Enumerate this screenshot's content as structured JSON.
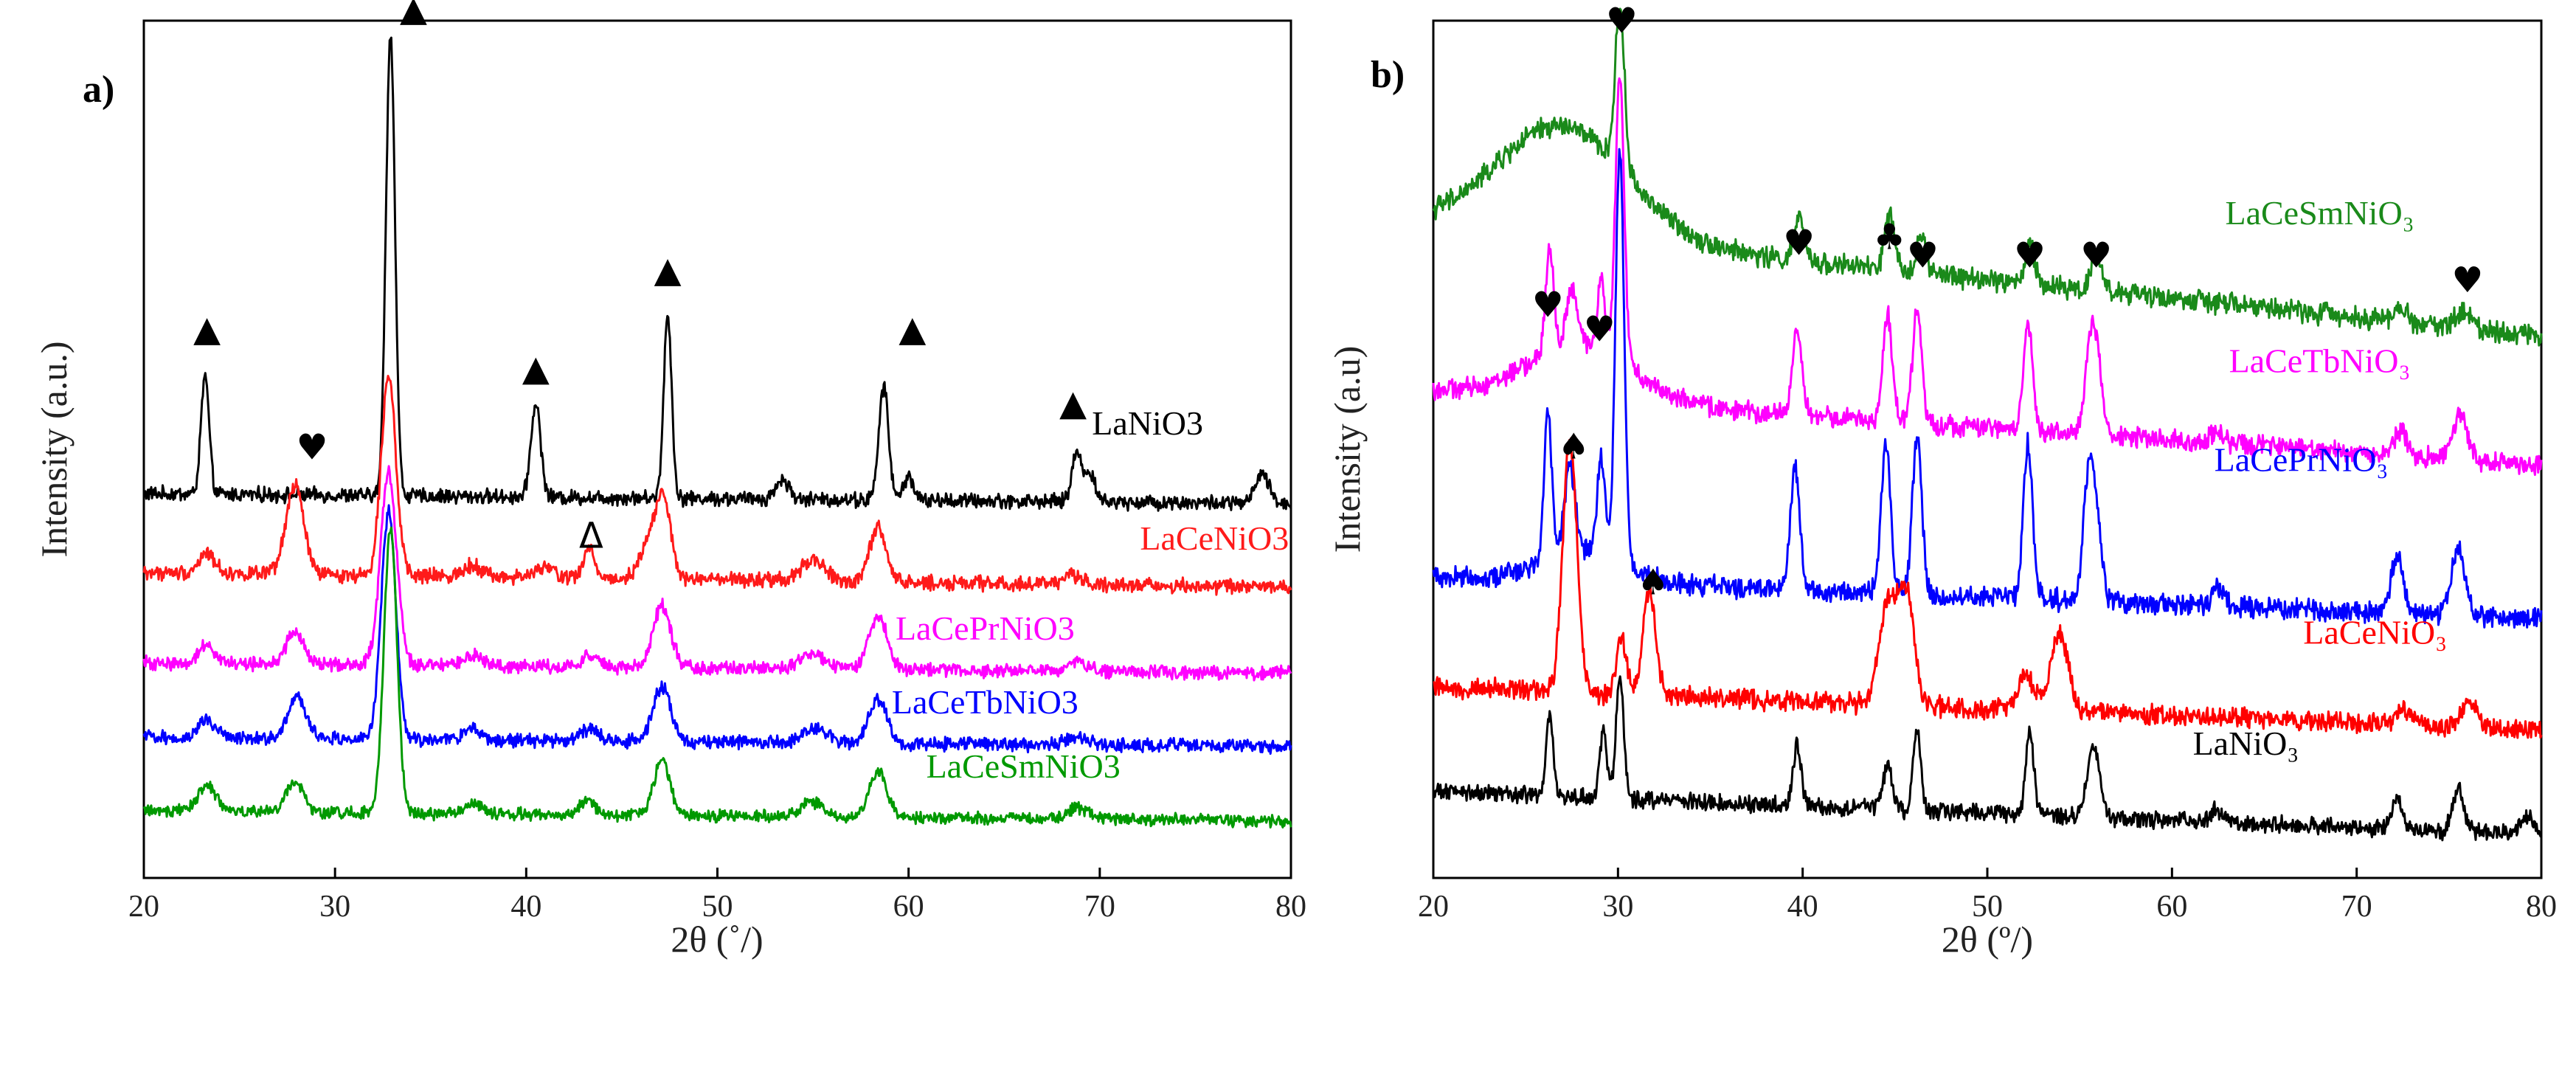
{
  "chart_data": [
    {
      "type": "line",
      "panel_label": "a)",
      "xlabel": "2θ (˚/)",
      "ylabel": "Intensity (a.u.)",
      "xlim": [
        20,
        80
      ],
      "xticks": [
        20,
        30,
        40,
        50,
        60,
        70,
        80
      ],
      "yticks": [],
      "series": [
        {
          "name": "LaNiO3",
          "color": "#000000",
          "offset": 3.3,
          "noise": 0.06,
          "background": [
            0.1,
            0.0
          ],
          "label_x": 72.5,
          "label_dy": 0.55,
          "peaks": [
            [
              23.2,
              1.2,
              0.25
            ],
            [
              32.9,
              4.7,
              0.28
            ],
            [
              40.5,
              0.95,
              0.3
            ],
            [
              47.4,
              1.85,
              0.25
            ],
            [
              53.4,
              0.2,
              0.4
            ],
            [
              58.7,
              1.15,
              0.3
            ],
            [
              60.0,
              0.25,
              0.3
            ],
            [
              68.8,
              0.5,
              0.3
            ],
            [
              69.5,
              0.3,
              0.3
            ],
            [
              78.5,
              0.3,
              0.4
            ]
          ]
        },
        {
          "name": "LaCeNiO3",
          "color": "#ff1a1a",
          "offset": 2.4,
          "noise": 0.06,
          "background": [
            0.15,
            0.05
          ],
          "label_x": 76,
          "label_dy": 0.28,
          "peaks": [
            [
              23.3,
              0.2,
              0.5
            ],
            [
              27.9,
              0.9,
              0.55
            ],
            [
              32.8,
              2.05,
              0.45
            ],
            [
              37.2,
              0.12,
              0.6
            ],
            [
              41.0,
              0.1,
              0.6
            ],
            [
              43.3,
              0.3,
              0.35
            ],
            [
              46.5,
              0.4,
              0.6
            ],
            [
              47.2,
              0.7,
              0.45
            ],
            [
              55.0,
              0.22,
              0.7
            ],
            [
              58.4,
              0.55,
              0.5
            ],
            [
              68.6,
              0.1,
              0.6
            ]
          ]
        },
        {
          "name": "LaCePrNiO3",
          "color": "#ff00ff",
          "offset": 1.55,
          "noise": 0.055,
          "background": [
            0.1,
            0.03
          ],
          "label_x": 64,
          "label_dy": 0.22,
          "peaks": [
            [
              23.3,
              0.2,
              0.5
            ],
            [
              27.9,
              0.32,
              0.55
            ],
            [
              32.8,
              1.95,
              0.5
            ],
            [
              37.2,
              0.1,
              0.6
            ],
            [
              43.3,
              0.12,
              0.5
            ],
            [
              47.1,
              0.62,
              0.55
            ],
            [
              55.0,
              0.15,
              0.7
            ],
            [
              58.4,
              0.55,
              0.55
            ],
            [
              68.8,
              0.1,
              0.6
            ]
          ]
        },
        {
          "name": "LaCeTbNiO3",
          "color": "#0000ff",
          "offset": 0.8,
          "noise": 0.055,
          "background": [
            0.1,
            0.03
          ],
          "label_x": 64,
          "label_dy": 0.22,
          "peaks": [
            [
              23.3,
              0.18,
              0.5
            ],
            [
              28.0,
              0.42,
              0.55
            ],
            [
              32.8,
              2.3,
              0.45
            ],
            [
              37.2,
              0.1,
              0.6
            ],
            [
              43.3,
              0.12,
              0.5
            ],
            [
              47.1,
              0.55,
              0.55
            ],
            [
              55.2,
              0.15,
              0.7
            ],
            [
              58.4,
              0.45,
              0.55
            ],
            [
              68.8,
              0.1,
              0.6
            ]
          ]
        },
        {
          "name": "LaCeSmNiO3",
          "color": "#009900",
          "offset": 0.05,
          "noise": 0.05,
          "background": [
            0.1,
            0.03
          ],
          "label_x": 66,
          "label_dy": 0.32,
          "peaks": [
            [
              23.3,
              0.25,
              0.6
            ],
            [
              27.9,
              0.3,
              0.55
            ],
            [
              32.9,
              2.9,
              0.4
            ],
            [
              37.2,
              0.1,
              0.6
            ],
            [
              43.2,
              0.15,
              0.45
            ],
            [
              47.1,
              0.55,
              0.5
            ],
            [
              55.0,
              0.15,
              0.7
            ],
            [
              58.4,
              0.45,
              0.55
            ],
            [
              68.8,
              0.1,
              0.6
            ]
          ]
        }
      ],
      "ylim": [
        -0.5,
        8.2
      ],
      "annotations": [
        {
          "symbol": "▲",
          "x": 23.3,
          "y": 4.95
        },
        {
          "symbol": "▲",
          "x": 34.1,
          "y": 8.2
        },
        {
          "symbol": "▲",
          "x": 40.5,
          "y": 4.55
        },
        {
          "symbol": "▲",
          "x": 47.4,
          "y": 5.55
        },
        {
          "symbol": "▲",
          "x": 60.2,
          "y": 4.95
        },
        {
          "symbol": "▲",
          "x": 68.6,
          "y": 4.2
        },
        {
          "symbol": "♥",
          "x": 28.8,
          "y": 3.75
        },
        {
          "symbol": "Δ",
          "x": 43.4,
          "y": 2.85
        }
      ]
    },
    {
      "type": "line",
      "panel_label": "b)",
      "xlabel": "2θ (º/)",
      "ylabel": "Intensity (a.u)",
      "xlim": [
        20,
        80
      ],
      "xticks": [
        20,
        30,
        40,
        50,
        60,
        70,
        80
      ],
      "yticks": [],
      "series": [
        {
          "name": "LaCeSmNiO₃",
          "color": "#1a8a1a",
          "offset": 4.05,
          "noise": 0.07,
          "background": [
            0.9,
            0.0
          ],
          "background_hump": [
            27,
            0.9,
            5
          ],
          "label_x": 68,
          "label_dy": 0.75,
          "peaks": [
            [
              30.1,
              1.3,
              0.3
            ],
            [
              39.8,
              0.35,
              0.3
            ],
            [
              44.7,
              0.45,
              0.3
            ],
            [
              46.4,
              0.3,
              0.3
            ],
            [
              52.3,
              0.32,
              0.3
            ],
            [
              55.9,
              0.3,
              0.35
            ],
            [
              72.4,
              0.1,
              0.4
            ],
            [
              75.8,
              0.12,
              0.5
            ]
          ]
        },
        {
          "name": "LaCeTbNiO₃",
          "color": "#ff00ff",
          "offset": 3.0,
          "noise": 0.065,
          "background": [
            0.6,
            0.0
          ],
          "background_hump": [
            28,
            0.45,
            4
          ],
          "label_x": 68,
          "label_dy": 0.6,
          "peaks": [
            [
              26.3,
              0.85,
              0.25
            ],
            [
              27.5,
              0.45,
              0.35
            ],
            [
              29.1,
              0.6,
              0.25
            ],
            [
              30.1,
              2.3,
              0.28
            ],
            [
              39.7,
              0.7,
              0.3
            ],
            [
              44.6,
              0.85,
              0.3
            ],
            [
              46.2,
              0.9,
              0.3
            ],
            [
              52.2,
              0.85,
              0.3
            ],
            [
              55.6,
              0.75,
              0.35
            ],
            [
              56.0,
              0.4,
              0.3
            ],
            [
              62.5,
              0.1,
              0.4
            ],
            [
              72.4,
              0.2,
              0.4
            ],
            [
              75.6,
              0.35,
              0.45
            ]
          ]
        },
        {
          "name": "LaCePrNiO₃",
          "color": "#0000ff",
          "offset": 1.75,
          "noise": 0.07,
          "background": [
            0.35,
            0.0
          ],
          "background_hump": [
            28,
            0.25,
            3
          ],
          "label_x": 67,
          "label_dy": 1.05,
          "peaks": [
            [
              26.2,
              1.2,
              0.25
            ],
            [
              27.4,
              0.7,
              0.35
            ],
            [
              29.1,
              0.8,
              0.25
            ],
            [
              30.1,
              3.35,
              0.28
            ],
            [
              39.6,
              1.0,
              0.3
            ],
            [
              44.5,
              1.2,
              0.3
            ],
            [
              46.2,
              1.3,
              0.3
            ],
            [
              52.2,
              1.25,
              0.3
            ],
            [
              55.5,
              1.05,
              0.35
            ],
            [
              56.0,
              0.5,
              0.3
            ],
            [
              62.5,
              0.15,
              0.4
            ],
            [
              72.2,
              0.45,
              0.4
            ],
            [
              75.5,
              0.55,
              0.45
            ]
          ]
        },
        {
          "name": "LaCeNiO₃",
          "color": "#ff0000",
          "offset": 0.85,
          "noise": 0.065,
          "background": [
            0.35,
            0.0
          ],
          "label_x": 71,
          "label_dy": 0.55,
          "peaks": [
            [
              27.4,
              2.05,
              0.45
            ],
            [
              30.2,
              0.45,
              0.3
            ],
            [
              31.7,
              0.85,
              0.4
            ],
            [
              44.6,
              0.8,
              0.55
            ],
            [
              45.6,
              0.9,
              0.5
            ],
            [
              52.1,
              0.3,
              0.5
            ],
            [
              53.9,
              0.65,
              0.55
            ],
            [
              72.6,
              0.12,
              0.5
            ],
            [
              76.1,
              0.2,
              0.5
            ]
          ]
        },
        {
          "name": "LaNiO₃",
          "color": "#000000",
          "offset": 0.0,
          "noise": 0.055,
          "background": [
            0.35,
            0.0
          ],
          "label_x": 64,
          "label_dy": 0.5,
          "peaks": [
            [
              26.3,
              0.65,
              0.22
            ],
            [
              29.2,
              0.55,
              0.22
            ],
            [
              30.1,
              1.0,
              0.25
            ],
            [
              39.7,
              0.5,
              0.25
            ],
            [
              44.6,
              0.35,
              0.3
            ],
            [
              46.2,
              0.65,
              0.25
            ],
            [
              52.3,
              0.7,
              0.25
            ],
            [
              55.6,
              0.45,
              0.3
            ],
            [
              56.0,
              0.3,
              0.3
            ],
            [
              62.4,
              0.1,
              0.4
            ],
            [
              72.2,
              0.25,
              0.35
            ],
            [
              75.5,
              0.35,
              0.35
            ],
            [
              79.3,
              0.15,
              0.4
            ]
          ]
        }
      ],
      "ylim": [
        -0.35,
        6.6
      ],
      "annotations": [
        {
          "symbol": "♥",
          "x": 30.2,
          "y": 6.5
        },
        {
          "symbol": "♥",
          "x": 26.2,
          "y": 4.2
        },
        {
          "symbol": "♥",
          "x": 29.0,
          "y": 4.0
        },
        {
          "symbol": "♥",
          "x": 39.8,
          "y": 4.7
        },
        {
          "symbol": "♣",
          "x": 44.7,
          "y": 4.75
        },
        {
          "symbol": "♥",
          "x": 46.5,
          "y": 4.6
        },
        {
          "symbol": "♥",
          "x": 52.3,
          "y": 4.6
        },
        {
          "symbol": "♥",
          "x": 55.9,
          "y": 4.6
        },
        {
          "symbol": "♥",
          "x": 76.0,
          "y": 4.4
        },
        {
          "symbol": "♠",
          "x": 27.6,
          "y": 3.05
        },
        {
          "symbol": "♠",
          "x": 31.9,
          "y": 1.95
        }
      ]
    }
  ]
}
